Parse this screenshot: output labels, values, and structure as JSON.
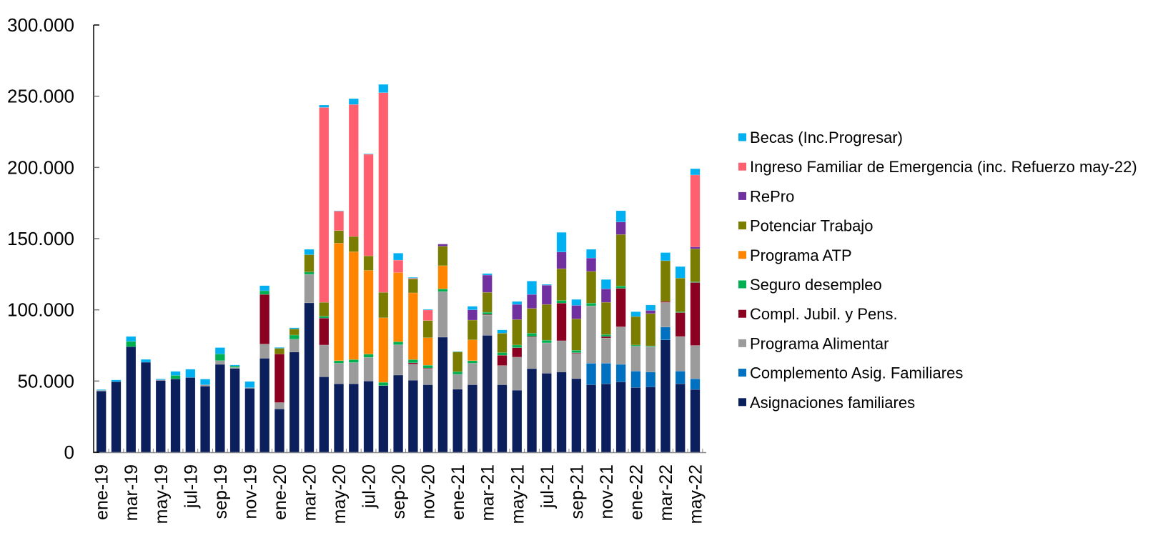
{
  "chart_data": {
    "type": "bar",
    "stacked": true,
    "title": "",
    "xlabel": "",
    "ylabel": "",
    "ylim": [
      0,
      300000
    ],
    "value_scale": 1000,
    "yticks": [
      "0",
      "50.000",
      "100.000",
      "150.000",
      "200.000",
      "250.000",
      "300.000"
    ],
    "grid": false,
    "legend_position": "right",
    "categories": [
      "ene-19",
      "feb-19",
      "mar-19",
      "abr-19",
      "may-19",
      "jun-19",
      "jul-19",
      "ago-19",
      "sep-19",
      "oct-19",
      "nov-19",
      "dic-19",
      "ene-20",
      "feb-20",
      "mar-20",
      "abr-20",
      "may-20",
      "jun-20",
      "jul-20",
      "ago-20",
      "sep-20",
      "oct-20",
      "nov-20",
      "dic-20",
      "ene-21",
      "feb-21",
      "mar-21",
      "abr-21",
      "may-21",
      "jun-21",
      "jul-21",
      "ago-21",
      "sep-21",
      "oct-21",
      "nov-21",
      "dic-21",
      "ene-22",
      "feb-22",
      "mar-22",
      "abr-22",
      "may-22"
    ],
    "series": [
      {
        "name": "Asignaciones familiares",
        "color": "#0A1F5C",
        "values": [
          43,
          49.6,
          74.2,
          63.2,
          50.4,
          51.5,
          52.5,
          46.4,
          61.7,
          58.9,
          44.9,
          66,
          30.4,
          70.4,
          104.9,
          53,
          48.1,
          48.1,
          50,
          46.8,
          54.2,
          50.6,
          47.4,
          80.8,
          44.3,
          47.4,
          82.1,
          47.4,
          43.6,
          58.7,
          55.5,
          56.4,
          51.7,
          47.4,
          48.1,
          49.4,
          45.5,
          45.9,
          78.9,
          48.1,
          44.1
        ]
      },
      {
        "name": "Complemento Asig. Familiares",
        "color": "#0070C0",
        "values": [
          0,
          0,
          0,
          0,
          0,
          0,
          0,
          0,
          0,
          0,
          0,
          0,
          0,
          0,
          0,
          0,
          0,
          0,
          0,
          0,
          0,
          0,
          0,
          0,
          0,
          0,
          0,
          0,
          0,
          0,
          0,
          0,
          0,
          15.1,
          14.4,
          12.3,
          11.5,
          10.5,
          9,
          8.9,
          7.5
        ]
      },
      {
        "name": "Programa Alimentar",
        "color": "#9B9B9B",
        "values": [
          0.5,
          0,
          0,
          0,
          0.5,
          0,
          0,
          1,
          2.6,
          0.7,
          0.5,
          10,
          4.5,
          9,
          20,
          22.3,
          14.4,
          14.9,
          16.6,
          0,
          21.3,
          11.3,
          11.2,
          32,
          10.4,
          15.1,
          14.2,
          13.5,
          23.2,
          22.1,
          21.3,
          21.9,
          17.7,
          40.3,
          17.7,
          26.4,
          17.5,
          17.7,
          17.3,
          24.3,
          23.4
        ]
      },
      {
        "name": "Compl. Jubil. y Pens.",
        "color": "#8B0020",
        "values": [
          0,
          0,
          0,
          0,
          0,
          0,
          0,
          0,
          0,
          0,
          0,
          34.8,
          34.1,
          0,
          0,
          18.9,
          0,
          0,
          0,
          0,
          0,
          0.9,
          0.5,
          0,
          0,
          0,
          0.5,
          7.2,
          6.6,
          0.5,
          0,
          26.4,
          0.5,
          0,
          1.1,
          27,
          0,
          0,
          0.7,
          16.8,
          44.2
        ]
      },
      {
        "name": "Seguro desempleo",
        "color": "#00B050",
        "values": [
          0,
          0,
          3.7,
          0,
          0,
          2.5,
          0,
          0,
          4.7,
          1,
          0,
          2.6,
          0,
          2.9,
          1.7,
          1.3,
          1.8,
          2.1,
          2.3,
          2.3,
          2.1,
          2.3,
          2,
          1.9,
          1.9,
          1.8,
          1.5,
          1.9,
          1.9,
          2.3,
          1.9,
          1.9,
          1.7,
          1.9,
          1.4,
          1.7,
          0.8,
          0.6,
          0,
          0.6,
          0.5
        ]
      },
      {
        "name": "Programa ATP",
        "color": "#FF8500",
        "values": [
          0,
          0,
          0,
          0,
          0,
          0,
          0,
          0,
          0,
          0,
          0,
          0,
          0,
          0,
          0,
          0,
          82.5,
          75.7,
          58.8,
          45.3,
          48.6,
          46.8,
          19.3,
          16.3,
          0,
          14.6,
          0,
          0,
          0,
          0,
          0,
          0,
          0,
          0,
          0,
          0,
          0,
          0,
          0,
          0,
          0
        ]
      },
      {
        "name": "Potenciar Trabajo",
        "color": "#7B7D00",
        "values": [
          0,
          0,
          0,
          0,
          0,
          0,
          0,
          0,
          0,
          0,
          0,
          0,
          4,
          4.3,
          12.1,
          9.8,
          8.9,
          10.7,
          10.2,
          17.9,
          0,
          9.8,
          12.1,
          13.7,
          13.9,
          13.9,
          14,
          13.6,
          17.9,
          17.4,
          25.1,
          22.3,
          22.1,
          22.3,
          22.6,
          36.1,
          20,
          22.7,
          28.6,
          23.6,
          23.1
        ]
      },
      {
        "name": "RePro",
        "color": "#7030A0",
        "values": [
          0,
          0,
          0,
          0,
          0,
          0,
          0,
          0,
          0,
          0,
          0,
          0,
          0,
          0,
          0,
          0,
          0,
          0,
          0,
          0,
          0,
          0,
          0,
          1.5,
          0,
          7.2,
          12.1,
          0,
          10.6,
          9.8,
          13.5,
          11.7,
          9.4,
          9.4,
          9.4,
          8.8,
          0,
          2.2,
          0,
          0,
          1.4
        ]
      },
      {
        "name": "Ingreso Familiar de Emergencia (inc. Refuerzo may-22)",
        "color": "#FF5F6E",
        "values": [
          0,
          0,
          0,
          0,
          0,
          0,
          0,
          0,
          0,
          0,
          0,
          0,
          0,
          0,
          0,
          136.8,
          13.6,
          92.7,
          71.3,
          140.2,
          8.7,
          0.5,
          7.4,
          0,
          0,
          0,
          0,
          0,
          0,
          0,
          0,
          0,
          0,
          0,
          0,
          0,
          0,
          0,
          0,
          0,
          50.5
        ]
      },
      {
        "name": "Becas (Inc.Progresar)",
        "color": "#00B0F0",
        "values": [
          0.5,
          1.2,
          3.4,
          2,
          0.6,
          2.8,
          5.8,
          4,
          4.5,
          0.7,
          4.3,
          3.6,
          0.6,
          0.8,
          3.8,
          1.7,
          0.3,
          4.1,
          0.4,
          5.8,
          4.9,
          0.6,
          0.5,
          0,
          0.3,
          2.5,
          1.1,
          2.3,
          2.1,
          9.4,
          0.6,
          13.8,
          4.2,
          6.1,
          6.6,
          7.9,
          3.4,
          3.8,
          5.7,
          8.1,
          4.4
        ]
      }
    ]
  }
}
